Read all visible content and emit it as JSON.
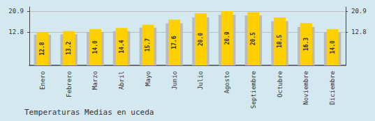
{
  "chart_data": {
    "type": "bar",
    "title": "Temperaturas Medias en uceda",
    "categories": [
      "Enero",
      "Febrero",
      "Marzo",
      "Abril",
      "Mayo",
      "Junio",
      "Julio",
      "Agosto",
      "Septiembre",
      "Octubre",
      "Noviembre",
      "Diciembre"
    ],
    "series": [
      {
        "color": "#BBBBBB",
        "values": [
          11.8,
          12.0,
          12.8,
          13.2,
          14.5,
          16.2,
          18.5,
          19.5,
          19.2,
          17.0,
          14.8,
          12.8
        ]
      },
      {
        "color": "#FFD000",
        "values": [
          12.8,
          13.2,
          14.0,
          14.4,
          15.7,
          17.6,
          20.0,
          20.9,
          20.5,
          18.5,
          16.3,
          14.0
        ],
        "value_labels": [
          "12.8",
          "13.2",
          "14.0",
          "14.4",
          "15.7",
          "17.6",
          "20.0",
          "20.9",
          "20.5",
          "18.5",
          "16.3",
          "14.0"
        ]
      }
    ],
    "ylim": [
      0.0,
      22.5
    ],
    "yticks": [
      12.8,
      20.9
    ],
    "y2lim": [
      0.0,
      22.5
    ],
    "y2ticks": [
      12.8,
      20.9
    ],
    "grid": true,
    "data_labels": true
  }
}
